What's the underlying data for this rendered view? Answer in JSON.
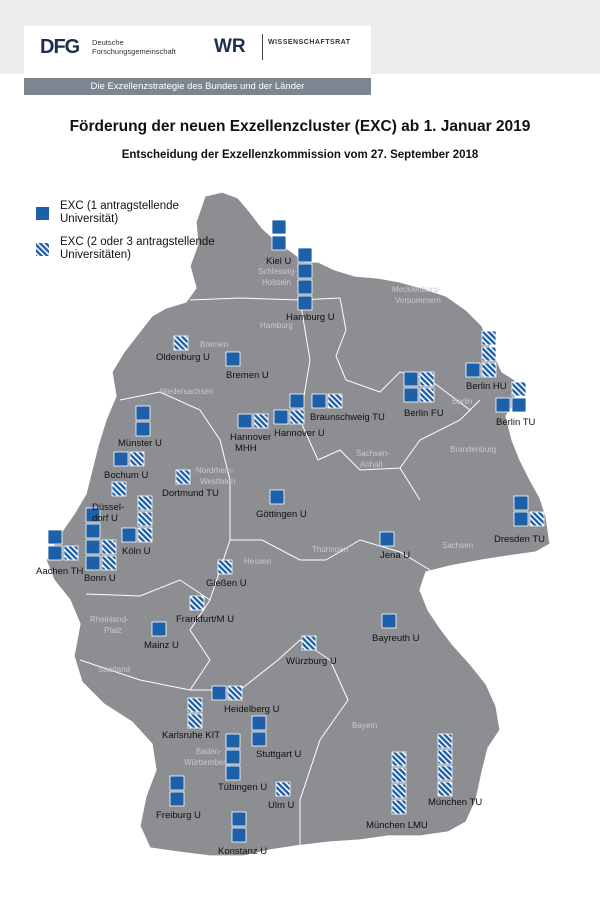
{
  "header": {
    "dfg_logo": "DFG",
    "dfg_subtitle_line1": "Deutsche",
    "dfg_subtitle_line2": "Forschungsgemeinschaft",
    "wr_logo": "WR",
    "wr_subtitle": "WISSENSCHAFTSRAT",
    "strip_text": "Die Exzellenzstrategie des Bundes und der Länder"
  },
  "title": "Förderung der neuen Exzellenzcluster (EXC) ab 1. Januar 2019",
  "subtitle": "Entscheidung der Exzellenzkommission vom 27. September 2018",
  "legend": {
    "solid_line1": "EXC (1 antragstellende",
    "solid_line2": "Universität)",
    "hatched_line1": "EXC (2 oder 3 antragstellende",
    "hatched_line2": "Universitäten)"
  },
  "colors": {
    "exc_blue": "#1d5fa8",
    "map_fill": "#8c8e91",
    "border": "#ffffff",
    "header_bg": "#ececec",
    "strip_bg": "#7c8590"
  },
  "regions": [
    "Schleswig-",
    "Holstein",
    "Hamburg",
    "Mecklenburg-",
    "Vorpommern",
    "Bremen",
    "Niedersachsen",
    "Berlin",
    "Brandenburg",
    "Sachsen-",
    "Anhalt",
    "Nordrhein-",
    "Westfalen",
    "Hessen",
    "Thüringen",
    "Sachsen",
    "Rheinland-",
    "Pfalz",
    "Saarland",
    "Baden-",
    "Württemberg",
    "Bayern"
  ],
  "cities": [
    {
      "name": "Kiel U",
      "solid": 2,
      "hatched": 0
    },
    {
      "name": "Hamburg U",
      "solid": 4,
      "hatched": 0
    },
    {
      "name": "Oldenburg U",
      "solid": 0,
      "hatched": 1
    },
    {
      "name": "Bremen U",
      "solid": 1,
      "hatched": 0
    },
    {
      "name": "Berlin HU",
      "solid": 1,
      "hatched": 3
    },
    {
      "name": "Berlin FU",
      "solid": 2,
      "hatched": 2
    },
    {
      "name": "Berlin TU",
      "solid": 2,
      "hatched": 2
    },
    {
      "name": "Münster U",
      "solid": 2,
      "hatched": 0
    },
    {
      "name": "Hannover",
      "name_line2": "MHH",
      "solid": 1,
      "hatched": 1
    },
    {
      "name": "Hannover U",
      "solid": 2,
      "hatched": 1
    },
    {
      "name": "Braunschweig TU",
      "solid": 1,
      "hatched": 1
    },
    {
      "name": "Bochum U",
      "solid": 1,
      "hatched": 1
    },
    {
      "name": "Dortmund TU",
      "solid": 0,
      "hatched": 1
    },
    {
      "name": "Düssel-",
      "name_line2": "dorf U",
      "solid": 0,
      "hatched": 1
    },
    {
      "name": "Köln U",
      "solid": 1,
      "hatched": 3
    },
    {
      "name": "Aachen TH",
      "solid": 2,
      "hatched": 1
    },
    {
      "name": "Bonn U",
      "solid": 4,
      "hatched": 2
    },
    {
      "name": "Göttingen U",
      "solid": 1,
      "hatched": 0
    },
    {
      "name": "Dresden TU",
      "solid": 2,
      "hatched": 1
    },
    {
      "name": "Jena U",
      "solid": 1,
      "hatched": 0
    },
    {
      "name": "Gießen U",
      "solid": 0,
      "hatched": 1
    },
    {
      "name": "Frankfurt/M U",
      "solid": 0,
      "hatched": 1
    },
    {
      "name": "Mainz U",
      "solid": 1,
      "hatched": 0
    },
    {
      "name": "Bayreuth U",
      "solid": 1,
      "hatched": 0
    },
    {
      "name": "Würzburg U",
      "solid": 0,
      "hatched": 1
    },
    {
      "name": "Heidelberg U",
      "solid": 1,
      "hatched": 1
    },
    {
      "name": "Karlsruhe KIT",
      "solid": 0,
      "hatched": 2
    },
    {
      "name": "Stuttgart U",
      "solid": 2,
      "hatched": 0
    },
    {
      "name": "Tübingen U",
      "solid": 3,
      "hatched": 0
    },
    {
      "name": "Ulm U",
      "solid": 0,
      "hatched": 1
    },
    {
      "name": "Freiburg U",
      "solid": 2,
      "hatched": 0
    },
    {
      "name": "Konstanz U",
      "solid": 2,
      "hatched": 0
    },
    {
      "name": "München LMU",
      "solid": 0,
      "hatched": 4
    },
    {
      "name": "München TU",
      "solid": 0,
      "hatched": 4
    }
  ]
}
